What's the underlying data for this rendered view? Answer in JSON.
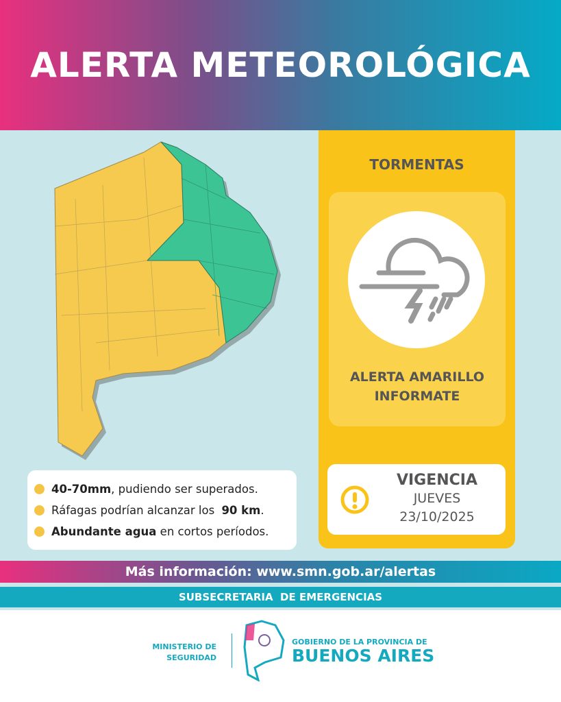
{
  "header": {
    "title": "ALERTA METEOROLÓGICA"
  },
  "colors": {
    "yellow_alert": "#f9c31a",
    "map_yellow": "#f6c94f",
    "map_green": "#3cc494",
    "teal": "#15a9bf",
    "pink": "#e8307e"
  },
  "alert": {
    "type": "TORMENTAS",
    "icon": "storm-cloud-icon",
    "level_line1": "ALERTA AMARILLO",
    "level_line2": "INFORMATE"
  },
  "vigencia": {
    "title": "VIGENCIA",
    "day": "JUEVES",
    "date": "23/10/2025",
    "icon": "exclamation-circle-icon"
  },
  "legend": [
    {
      "bold": "40-70mm",
      "text": ", pudiendo ser superados."
    },
    {
      "pre": "Ráfagas podrían alcanzar los ",
      "bold": "90 km",
      "post": "."
    },
    {
      "bold": "Abundante agua",
      "text": " en cortos períodos."
    }
  ],
  "footer": {
    "more_info": "Más información: www.smn.gob.ar/alertas",
    "subsecretaria": "SUBSECRETARIA  DE EMERGENCIAS",
    "ministerio_line1": "MINISTERIO DE",
    "ministerio_line2": "SEGURIDAD",
    "gobierno_line1": "GOBIERNO DE LA PROVINCIA DE",
    "gobierno_line2": "BUENOS AIRES"
  }
}
